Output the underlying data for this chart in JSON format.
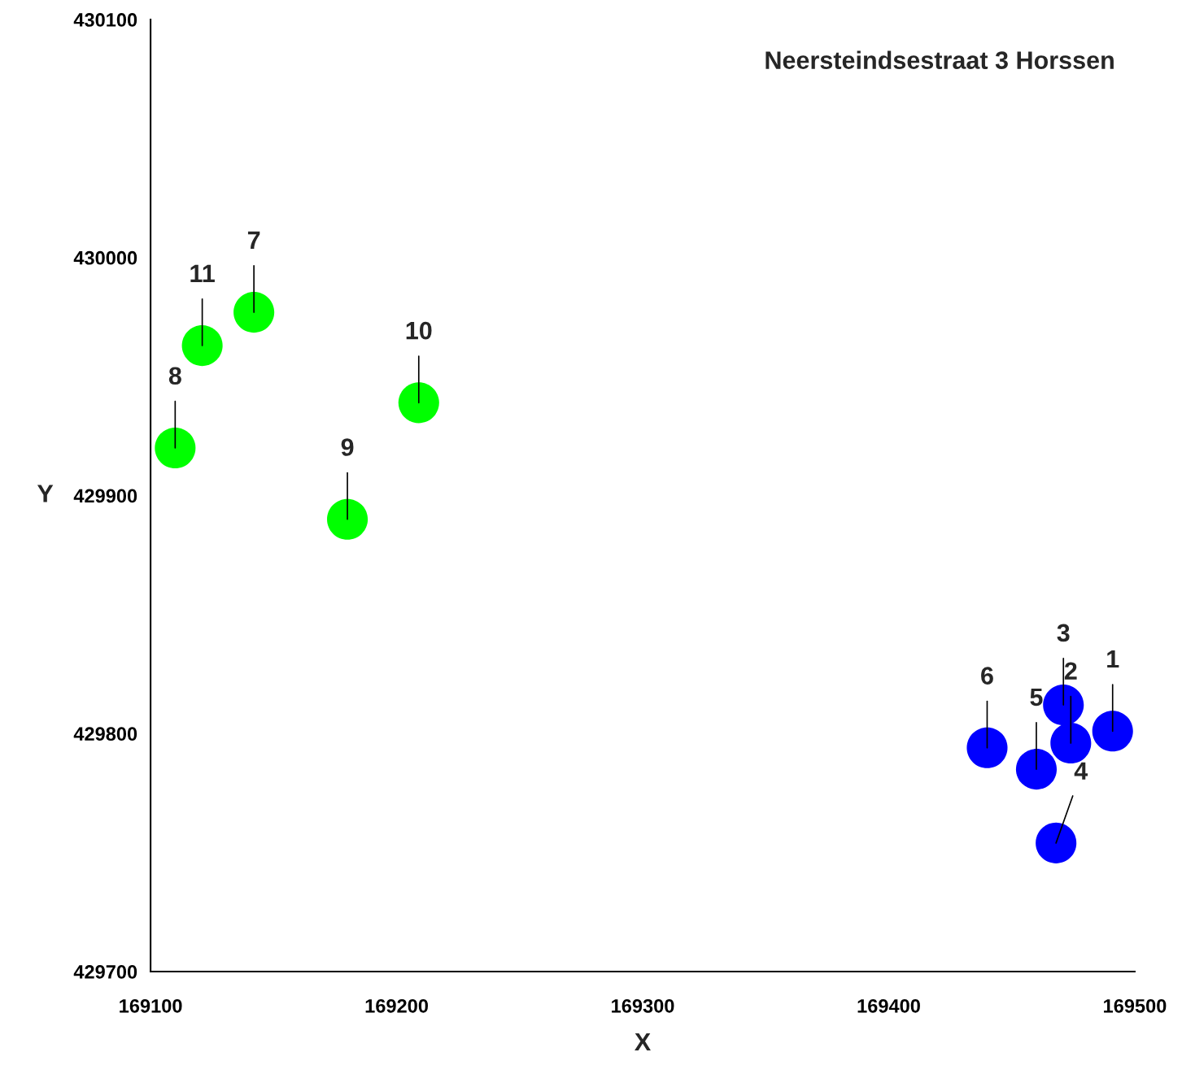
{
  "chart_data": {
    "type": "scatter",
    "title": "Neersteindsestraat 3 Horssen",
    "xlabel": "X",
    "ylabel": "Y",
    "series": [
      {
        "color": "#0000ff",
        "x": [
          169491,
          169474,
          169471,
          169468,
          169460,
          169440
        ],
        "values": [
          429801,
          429796,
          429812,
          429754,
          429785,
          429794
        ]
      },
      {
        "color": "#00ff00",
        "x": [
          169142,
          169110,
          169180,
          169209,
          169121
        ],
        "values": [
          429977,
          429920,
          429890,
          429939,
          429963
        ]
      }
    ],
    "annotations": [
      {
        "text": "1",
        "x": 169491,
        "y": 429801
      },
      {
        "text": "2",
        "x": 169474,
        "y": 429796
      },
      {
        "text": "3",
        "x": 169471,
        "y": 429812
      },
      {
        "text": "4",
        "x": 169468,
        "y": 429754
      },
      {
        "text": "5",
        "x": 169460,
        "y": 429785
      },
      {
        "text": "6",
        "x": 169440,
        "y": 429794
      },
      {
        "text": "7",
        "x": 169142,
        "y": 429977
      },
      {
        "text": "8",
        "x": 169110,
        "y": 429920
      },
      {
        "text": "9",
        "x": 169180,
        "y": 429890
      },
      {
        "text": "10",
        "x": 169209,
        "y": 429939
      },
      {
        "text": "11",
        "x": 169121,
        "y": 429963
      }
    ],
    "xlim": [
      169100,
      169500
    ],
    "xticks": [
      169100,
      169200,
      169300,
      169400,
      169500
    ],
    "ylim": [
      429700,
      430100
    ],
    "yticks": [
      429700,
      429800,
      429900,
      430000,
      430100
    ],
    "marker": "circle",
    "grid": false,
    "legend": false
  }
}
